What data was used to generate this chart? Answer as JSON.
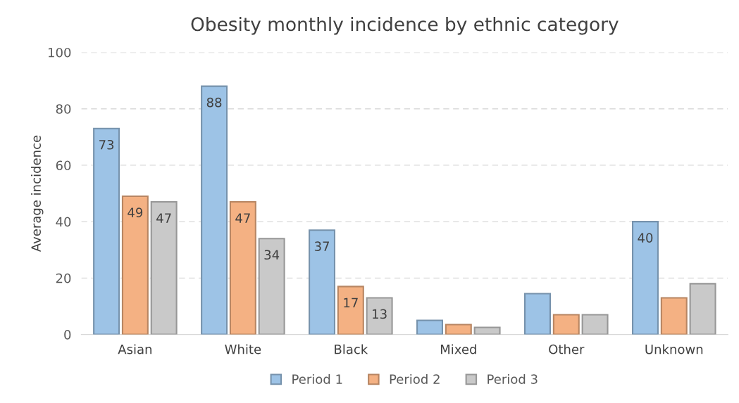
{
  "chart_data": {
    "type": "bar",
    "title": "Obesity monthly incidence by ethnic category",
    "ylabel": "Average incidence",
    "categories": [
      "Asian",
      "White",
      "Black",
      "Mixed",
      "Other",
      "Unknown"
    ],
    "series": [
      {
        "name": "Period 1",
        "color": "#9dc3e6",
        "values": [
          73,
          88,
          37,
          5,
          14.5,
          40
        ],
        "value_labels": [
          "73",
          "88",
          "37",
          null,
          null,
          "40"
        ]
      },
      {
        "name": "Period 2",
        "color": "#f4b183",
        "values": [
          49,
          47,
          17,
          3.5,
          7,
          13
        ],
        "value_labels": [
          "49",
          "47",
          "17",
          null,
          null,
          null
        ]
      },
      {
        "name": "Period 3",
        "color": "#c9c9c9",
        "values": [
          47,
          34,
          13,
          2.5,
          7,
          18
        ],
        "value_labels": [
          "47",
          "34",
          "13",
          null,
          null,
          null
        ]
      }
    ],
    "ylim": [
      0,
      100
    ],
    "yticks": [
      0,
      20,
      40,
      60,
      80,
      100
    ],
    "grid": "y",
    "legend": "bottom"
  }
}
